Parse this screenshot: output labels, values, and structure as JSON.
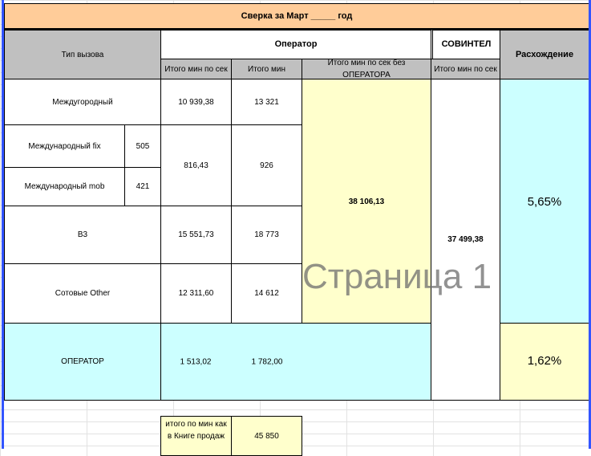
{
  "title": "Сверка за Март _____ год",
  "headers": {
    "call_type": "Тип вызова",
    "operator": "Оператор",
    "sovintel": "СОВИНТЕЛ",
    "diff": "Расхождение",
    "sub": [
      "Итого мин по сек",
      "Итого мин",
      "Итого мин по сек без ОПЕРАТОРА",
      "Итого мин по сек"
    ]
  },
  "rows": [
    {
      "label": "Междугородный",
      "sec": "10 939,38",
      "min": "13 321"
    },
    {
      "label": "Международный fix",
      "code": "505"
    },
    {
      "label": "Международный mob",
      "code": "421"
    },
    {
      "label": "В3",
      "sec": "15 551,73",
      "min": "18 773"
    },
    {
      "label": "Сотовые Other",
      "sec": "12 311,60",
      "min": "14 612"
    }
  ],
  "intl": {
    "sec": "816,43",
    "min": "926"
  },
  "operator_total_no_op": "38 106,13",
  "sovintel_total": "37 499,38",
  "diff_main": "5,65%",
  "operator_row": {
    "label": "ОПЕРАТОР",
    "sec": "1 513,02",
    "min": "1 782,00",
    "diff": "1,62%"
  },
  "sales_book": {
    "label": "итого по мин как в Книге продаж",
    "value": "45 850"
  },
  "watermark": "Страница 1",
  "colors": {
    "title": "#ffcc99",
    "header": "#c0c0c0",
    "yellow": "#ffffcc",
    "cyan": "#ccffff",
    "page_break": "#3355ff"
  }
}
